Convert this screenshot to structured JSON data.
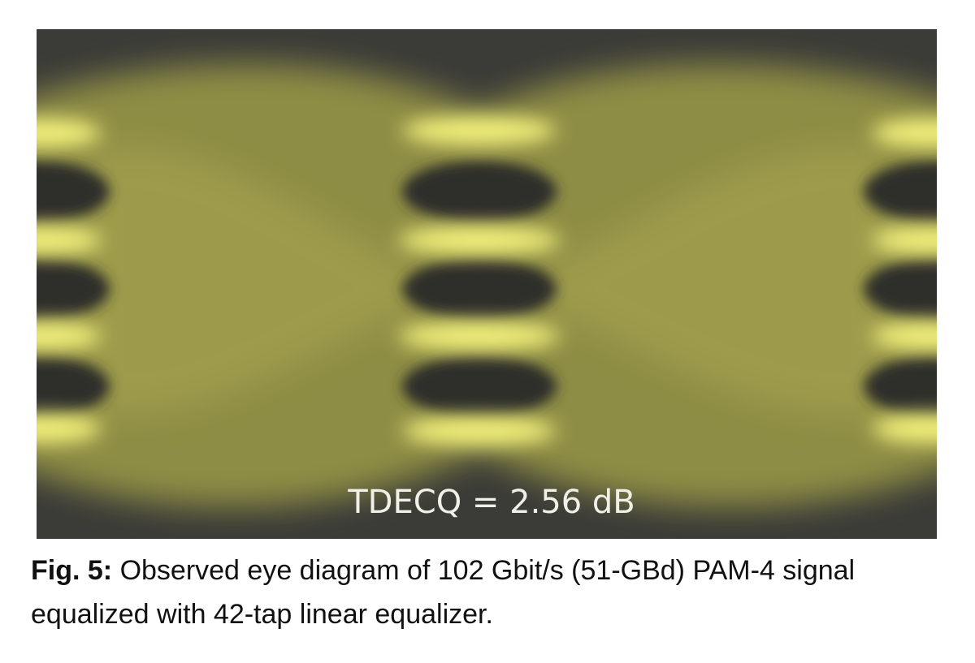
{
  "figure": {
    "annotation": "TDECQ = 2.56 dB",
    "caption": {
      "label": "Fig. 5:",
      "text": "Observed eye diagram of 102 Gbit/s (51-GBd) PAM-4 signal equalized with 42-tap linear equalizer."
    }
  }
}
